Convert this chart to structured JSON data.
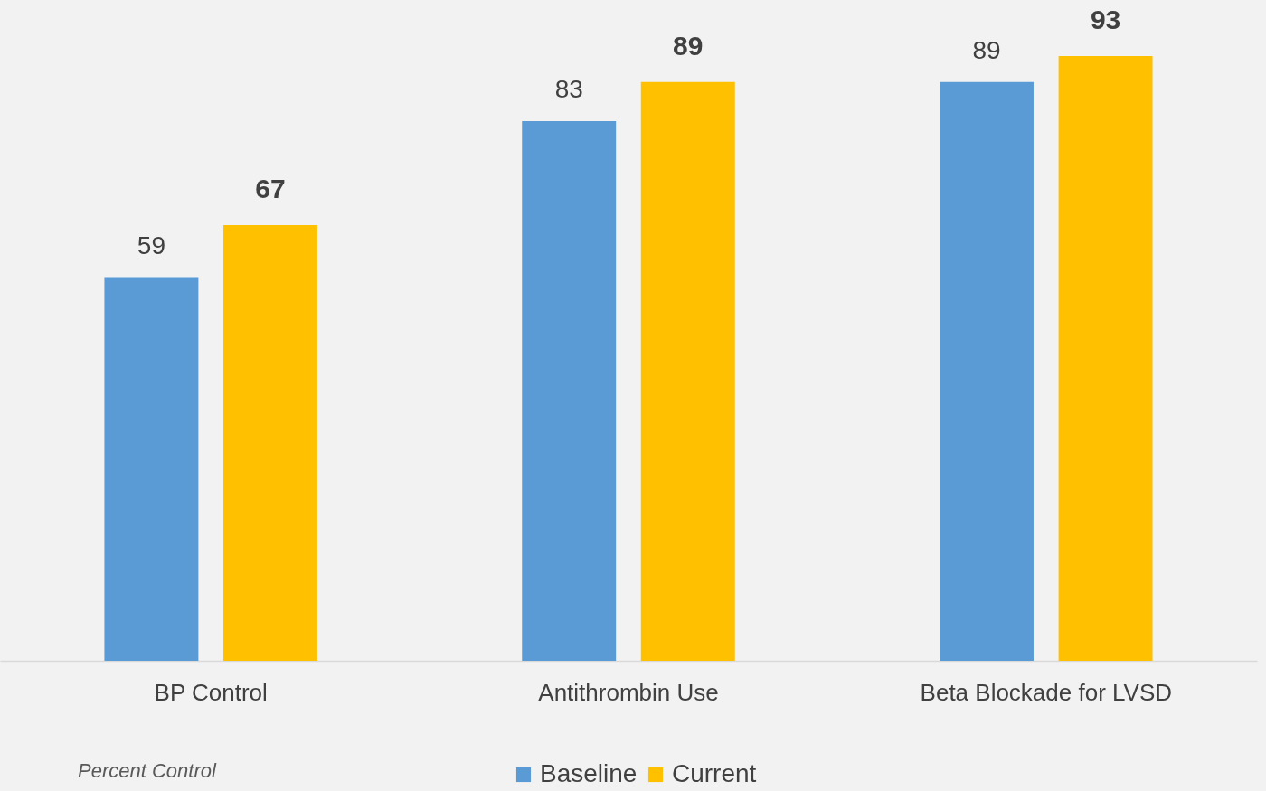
{
  "chart_data": {
    "type": "bar",
    "categories": [
      "BP Control",
      "Antithrombin Use",
      "Beta Blockade for LVSD"
    ],
    "series": [
      {
        "name": "Baseline",
        "color": "#5b9bd5",
        "values": [
          59,
          83,
          89
        ]
      },
      {
        "name": "Current",
        "color": "#ffc000",
        "values": [
          67,
          89,
          93
        ]
      }
    ],
    "data_labels": true,
    "legend": "bottom",
    "grid": false,
    "annotations": [
      "Percent Control"
    ]
  }
}
